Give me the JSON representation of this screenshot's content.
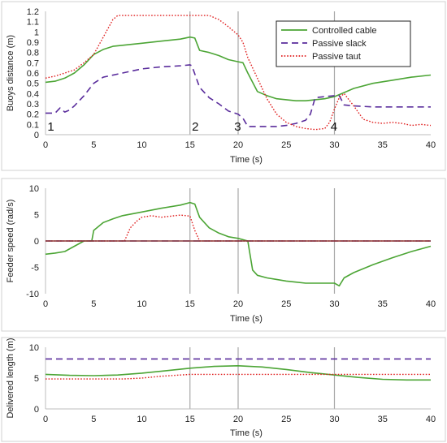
{
  "chart_data": [
    {
      "type": "line",
      "xlabel": "Time (s)",
      "ylabel": "Buoys distance (m)",
      "xlim": [
        0,
        40
      ],
      "ylim": [
        0,
        1.2
      ],
      "x_ticks": [
        0,
        5,
        10,
        15,
        20,
        25,
        30,
        35,
        40
      ],
      "y_ticks": [
        0,
        0.1,
        0.2,
        0.3,
        0.4,
        0.5,
        0.6,
        0.7,
        0.8,
        0.9,
        1,
        1.1,
        1.2
      ],
      "x_tick_labels": [
        "0",
        "5",
        "10",
        "15",
        "20",
        "25",
        "30",
        "35",
        "40"
      ],
      "y_tick_labels": [
        "0",
        "0.1",
        "0.2",
        "0.3",
        "0.4",
        "0.5",
        "0.6",
        "0.7",
        "0.8",
        "0.9",
        "1",
        "1.1",
        "1.2"
      ],
      "grid": false,
      "legend": "top-right",
      "event_lines": [
        15,
        20,
        30
      ],
      "annotations": [
        {
          "text": "1",
          "x": 0.2,
          "y": 0.04
        },
        {
          "text": "2",
          "x": 15.2,
          "y": 0.04
        },
        {
          "text": "3",
          "x": 19.6,
          "y": 0.04
        },
        {
          "text": "4",
          "x": 29.6,
          "y": 0.04
        }
      ],
      "series": [
        {
          "name": "Controlled cable",
          "color": "#4ca535",
          "style": "solid",
          "x": [
            0,
            1,
            2,
            3,
            4,
            5,
            6,
            7,
            8,
            10,
            12,
            14,
            15,
            15.5,
            16,
            17,
            18,
            19,
            20,
            20.5,
            21,
            22,
            23,
            24,
            25,
            26,
            27,
            28,
            29,
            30,
            31,
            32,
            34,
            36,
            38,
            40
          ],
          "y": [
            0.51,
            0.52,
            0.55,
            0.6,
            0.68,
            0.78,
            0.83,
            0.86,
            0.87,
            0.89,
            0.91,
            0.93,
            0.95,
            0.94,
            0.82,
            0.8,
            0.77,
            0.73,
            0.71,
            0.7,
            0.6,
            0.42,
            0.38,
            0.35,
            0.34,
            0.33,
            0.33,
            0.34,
            0.35,
            0.37,
            0.41,
            0.45,
            0.5,
            0.53,
            0.56,
            0.58
          ]
        },
        {
          "name": "Passive slack",
          "color": "#5a2d9c",
          "style": "dashed",
          "x": [
            0,
            1,
            1.5,
            2,
            2.5,
            3,
            4,
            5,
            6,
            8,
            10,
            12,
            14,
            15,
            15.2,
            16,
            17,
            18,
            19,
            20,
            20.5,
            21,
            22,
            23,
            24,
            25,
            26,
            27,
            27.5,
            28,
            29,
            30,
            30.5,
            31,
            32,
            34,
            36,
            38,
            40
          ],
          "y": [
            0.21,
            0.21,
            0.26,
            0.22,
            0.24,
            0.28,
            0.38,
            0.5,
            0.56,
            0.6,
            0.64,
            0.66,
            0.67,
            0.68,
            0.67,
            0.46,
            0.36,
            0.3,
            0.23,
            0.2,
            0.16,
            0.08,
            0.08,
            0.08,
            0.08,
            0.09,
            0.11,
            0.14,
            0.2,
            0.36,
            0.37,
            0.38,
            0.38,
            0.29,
            0.28,
            0.27,
            0.27,
            0.27,
            0.27
          ]
        },
        {
          "name": "Passive taut",
          "color": "#e02020",
          "style": "dotted",
          "x": [
            0,
            1,
            2,
            3,
            4,
            5,
            6,
            7,
            7.5,
            8,
            10,
            12,
            14,
            16,
            17,
            18,
            19,
            20,
            20.5,
            21,
            22,
            23,
            24,
            25,
            26,
            27,
            28,
            29,
            29.5,
            30,
            30.5,
            31,
            32,
            33,
            34,
            35,
            36,
            37,
            38,
            39,
            40
          ],
          "y": [
            0.55,
            0.57,
            0.6,
            0.63,
            0.7,
            0.78,
            0.95,
            1.12,
            1.16,
            1.16,
            1.16,
            1.16,
            1.16,
            1.16,
            1.16,
            1.12,
            1.05,
            0.97,
            0.9,
            0.75,
            0.55,
            0.35,
            0.2,
            0.12,
            0.08,
            0.06,
            0.05,
            0.06,
            0.12,
            0.25,
            0.36,
            0.4,
            0.28,
            0.15,
            0.12,
            0.11,
            0.12,
            0.11,
            0.09,
            0.1,
            0.09
          ]
        }
      ]
    },
    {
      "type": "line",
      "xlabel": "Time (s)",
      "ylabel": "Feeder speed (rad/s)",
      "xlim": [
        0,
        40
      ],
      "ylim": [
        -10,
        10
      ],
      "x_ticks": [
        0,
        5,
        10,
        15,
        20,
        25,
        30,
        35,
        40
      ],
      "y_ticks": [
        -10,
        -5,
        0,
        5,
        10
      ],
      "x_tick_labels": [
        "0",
        "5",
        "10",
        "15",
        "20",
        "25",
        "30",
        "35",
        "40"
      ],
      "y_tick_labels": [
        "-10",
        "-5",
        "0",
        "5",
        "10"
      ],
      "grid": false,
      "event_lines": [
        15,
        20,
        30
      ],
      "series": [
        {
          "name": "Controlled cable",
          "color": "#4ca535",
          "style": "solid",
          "x": [
            0,
            1,
            2,
            3,
            4,
            4.8,
            5,
            6,
            7,
            8,
            10,
            12,
            14,
            15,
            15.5,
            16,
            17,
            18,
            19,
            20,
            21,
            21.5,
            22,
            23,
            24,
            25,
            26,
            27,
            28,
            29,
            30,
            30.5,
            31,
            32,
            34,
            36,
            38,
            40
          ],
          "y": [
            -2.5,
            -2.3,
            -2.0,
            -1.0,
            0,
            0,
            2.0,
            3.5,
            4.2,
            4.8,
            5.5,
            6.2,
            6.8,
            7.3,
            7.0,
            4.5,
            2.5,
            1.5,
            0.8,
            0.5,
            0,
            -5.5,
            -6.5,
            -7.0,
            -7.3,
            -7.6,
            -7.8,
            -8.0,
            -8.0,
            -8.0,
            -8.0,
            -8.5,
            -7.0,
            -6.0,
            -4.5,
            -3.2,
            -2.0,
            -1.0
          ]
        },
        {
          "name": "Passive slack",
          "color": "#5a2d9c",
          "style": "dashed",
          "x": [
            0,
            40
          ],
          "y": [
            0,
            0
          ]
        },
        {
          "name": "Passive taut",
          "color": "#e02020",
          "style": "dotted",
          "x": [
            0,
            8.2,
            8.8,
            9.5,
            10,
            11,
            12,
            13,
            14,
            14.6,
            15,
            15.5,
            16,
            40
          ],
          "y": [
            0,
            0,
            2.5,
            3.8,
            4.5,
            4.8,
            4.5,
            4.7,
            4.9,
            4.8,
            4.7,
            2.0,
            0,
            0
          ]
        },
        {
          "name": "zero reference",
          "color": "#8a3a3a",
          "style": "solid",
          "x": [
            0,
            40
          ],
          "y": [
            0,
            0
          ]
        }
      ]
    },
    {
      "type": "line",
      "xlabel": "Time (s)",
      "ylabel": "Delivered length (m)",
      "xlim": [
        0,
        40
      ],
      "ylim": [
        0,
        10
      ],
      "x_ticks": [
        0,
        5,
        10,
        15,
        20,
        25,
        30,
        35,
        40
      ],
      "y_ticks": [
        0,
        5,
        10
      ],
      "x_tick_labels": [
        "0",
        "5",
        "10",
        "15",
        "20",
        "25",
        "30",
        "35",
        "40"
      ],
      "y_tick_labels": [
        "0",
        "5",
        "10"
      ],
      "grid": false,
      "event_lines": [
        15,
        20,
        30
      ],
      "series": [
        {
          "name": "Controlled cable",
          "color": "#4ca535",
          "style": "solid",
          "x": [
            0,
            2.5,
            5,
            7.5,
            10,
            12.5,
            15,
            17.5,
            20,
            22.5,
            25,
            27.5,
            30,
            32.5,
            35,
            37.5,
            40
          ],
          "y": [
            5.6,
            5.45,
            5.4,
            5.5,
            5.8,
            6.2,
            6.6,
            6.9,
            7.0,
            6.8,
            6.4,
            5.9,
            5.5,
            5.1,
            4.8,
            4.7,
            4.7
          ]
        },
        {
          "name": "Passive slack",
          "color": "#5a2d9c",
          "style": "dashed",
          "x": [
            0,
            40
          ],
          "y": [
            8.1,
            8.1
          ]
        },
        {
          "name": "Passive taut",
          "color": "#e02020",
          "style": "dotted",
          "x": [
            0,
            5,
            8,
            10,
            12,
            14,
            15,
            16,
            20,
            25,
            30,
            35,
            40
          ],
          "y": [
            4.85,
            4.85,
            4.85,
            5.0,
            5.3,
            5.5,
            5.6,
            5.6,
            5.6,
            5.6,
            5.6,
            5.6,
            5.6
          ]
        }
      ]
    }
  ]
}
